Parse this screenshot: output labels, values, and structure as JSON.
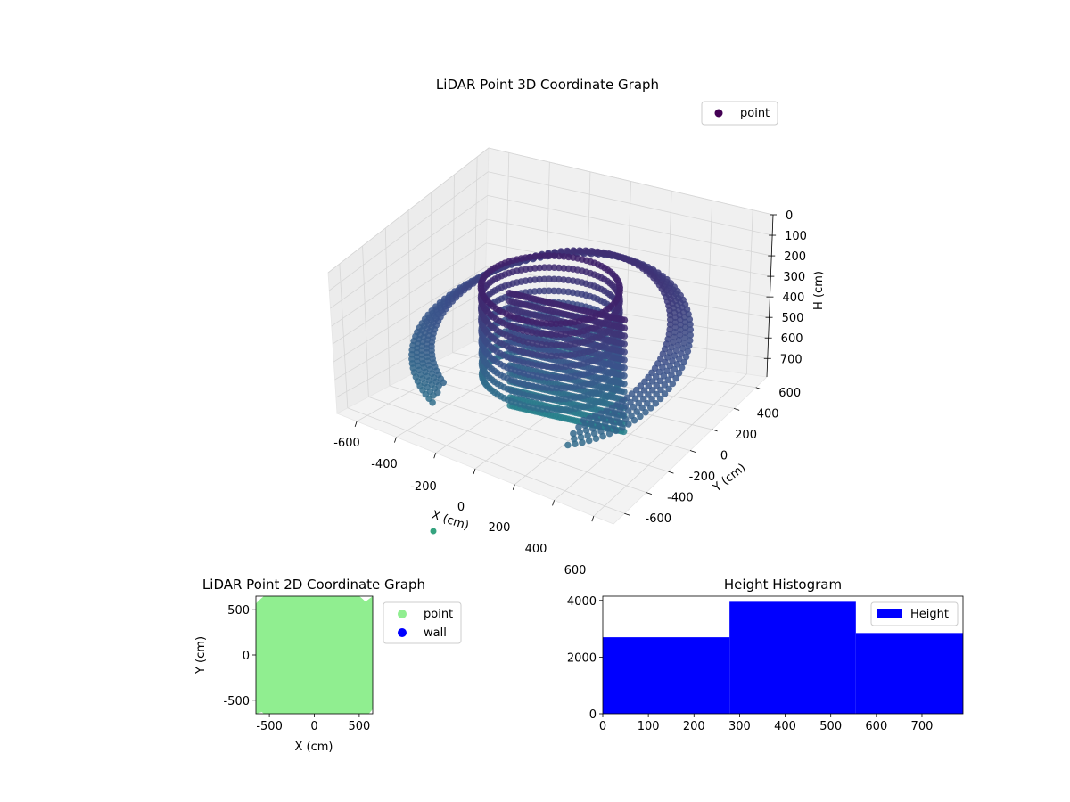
{
  "chart_data": [
    {
      "type": "scatter",
      "projection": "3d",
      "title": "LiDAR Point 3D Coordinate Graph",
      "xlabel": "X (cm)",
      "ylabel": "Y (cm)",
      "zlabel": "H (cm)",
      "xlim": [
        -700,
        700
      ],
      "ylim": [
        -700,
        700
      ],
      "zlim": [
        0,
        790
      ],
      "z_inverted": true,
      "xticks": [
        "-600",
        "-400",
        "-200",
        "0",
        "200",
        "400",
        "600"
      ],
      "yticks": [
        "-600",
        "-400",
        "-200",
        "0",
        "200",
        "400",
        "600"
      ],
      "zticks": [
        "0",
        "100",
        "200",
        "300",
        "400",
        "500",
        "600",
        "700"
      ],
      "grid": true,
      "colormap": "viridis",
      "legend": {
        "entries": [
          "point"
        ],
        "placement": "upper-right",
        "colors": [
          "#440154"
        ]
      },
      "series": [
        {
          "name": "point",
          "shape": "rings around scanner",
          "height_range": [
            0,
            790
          ]
        }
      ]
    },
    {
      "type": "scatter",
      "title": "LiDAR Point 2D Coordinate Graph",
      "xlabel": "X (cm)",
      "ylabel": "Y (cm)",
      "xlim": [
        -650,
        650
      ],
      "ylim": [
        -650,
        650
      ],
      "xticks": [
        "-500",
        "0",
        "500"
      ],
      "yticks": [
        "-500",
        "0",
        "500"
      ],
      "legend": {
        "entries": [
          "point",
          "wall"
        ],
        "placement": "outside-right",
        "colors": [
          "#90ee90",
          "#0000ff"
        ]
      },
      "series": [
        {
          "name": "point",
          "color": "#90ee90"
        },
        {
          "name": "wall",
          "color": "#0000ff"
        }
      ]
    },
    {
      "type": "bar",
      "title": "Height Histogram",
      "xlabel": "",
      "ylabel": "",
      "bins": [
        [
          0,
          278
        ],
        [
          278,
          555
        ],
        [
          555,
          790
        ]
      ],
      "values": [
        2700,
        3950,
        2850
      ],
      "xlim": [
        0,
        790
      ],
      "ylim": [
        0,
        4150
      ],
      "xticks": [
        "0",
        "100",
        "200",
        "300",
        "400",
        "500",
        "600",
        "700"
      ],
      "yticks": [
        "0",
        "2000",
        "4000"
      ],
      "color": "#0000ff",
      "legend": {
        "entries": [
          "Height"
        ],
        "placement": "upper-right"
      }
    }
  ]
}
